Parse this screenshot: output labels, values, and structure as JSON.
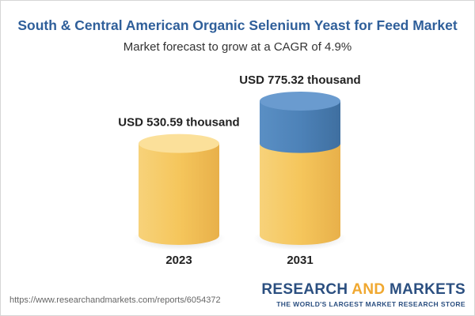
{
  "header": {
    "title": "South & Central American Organic Selenium Yeast for Feed Market",
    "subtitle": "Market forecast to grow at a CAGR of 4.9%"
  },
  "chart_data": {
    "type": "bar",
    "categories": [
      "2023",
      "2031"
    ],
    "values": [
      530.59,
      775.32
    ],
    "unit": "USD thousand",
    "data_labels": [
      "USD 530.59 thousand",
      "USD 775.32 thousand"
    ],
    "growth_increment": 244.73,
    "colors": {
      "base": "#f5c65c",
      "base_dark": "#e6a93c",
      "base_top": "#fbe09a",
      "growth": "#4d82b8",
      "growth_dark": "#3a6d9f",
      "growth_top": "#6a9bcf"
    }
  },
  "footer": {
    "source_url": "https://www.researchandmarkets.com/reports/6054372",
    "brand_part1": "RESEARCH ",
    "brand_part2": "AND",
    "brand_part3": " MARKETS",
    "brand_tagline": "THE WORLD'S LARGEST MARKET RESEARCH STORE"
  }
}
